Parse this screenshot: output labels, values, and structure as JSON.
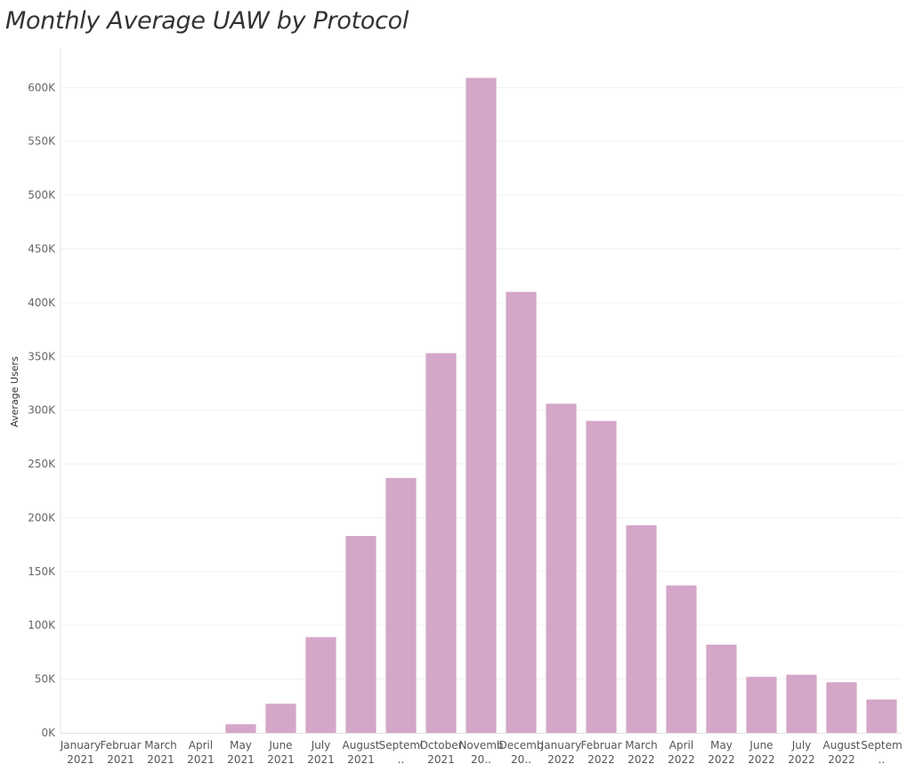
{
  "chart_data": {
    "type": "bar",
    "title": "Monthly Average UAW by Protocol",
    "ylabel": "Average Users",
    "xlabel": "",
    "ylim": [
      0,
      640000
    ],
    "yticks": [
      0,
      50000,
      100000,
      150000,
      200000,
      250000,
      300000,
      350000,
      400000,
      450000,
      500000,
      550000,
      600000
    ],
    "ytick_labels": [
      "0K",
      "50K",
      "100K",
      "150K",
      "200K",
      "250K",
      "300K",
      "350K",
      "400K",
      "450K",
      "500K",
      "550K",
      "600K"
    ],
    "grid": true,
    "bar_color": "#d4a6c8",
    "categories": [
      [
        "January",
        "2021"
      ],
      [
        "Februar",
        "2021"
      ],
      [
        "March",
        "2021"
      ],
      [
        "April",
        "2021"
      ],
      [
        "May",
        "2021"
      ],
      [
        "June",
        "2021"
      ],
      [
        "July",
        "2021"
      ],
      [
        "August",
        "2021"
      ],
      [
        "Septeml",
        ".."
      ],
      [
        "October",
        "2021"
      ],
      [
        "Novemb",
        "20.."
      ],
      [
        "Decemb",
        "20.."
      ],
      [
        "January",
        "2022"
      ],
      [
        "Februar",
        "2022"
      ],
      [
        "March",
        "2022"
      ],
      [
        "April",
        "2022"
      ],
      [
        "May",
        "2022"
      ],
      [
        "June",
        "2022"
      ],
      [
        "July",
        "2022"
      ],
      [
        "August",
        "2022"
      ],
      [
        "Septem",
        ".."
      ]
    ],
    "values": [
      0,
      0,
      0,
      0,
      8000,
      27000,
      89000,
      183000,
      237000,
      353000,
      609000,
      410000,
      306000,
      290000,
      193000,
      137000,
      82000,
      52000,
      54000,
      47000,
      31000
    ]
  }
}
